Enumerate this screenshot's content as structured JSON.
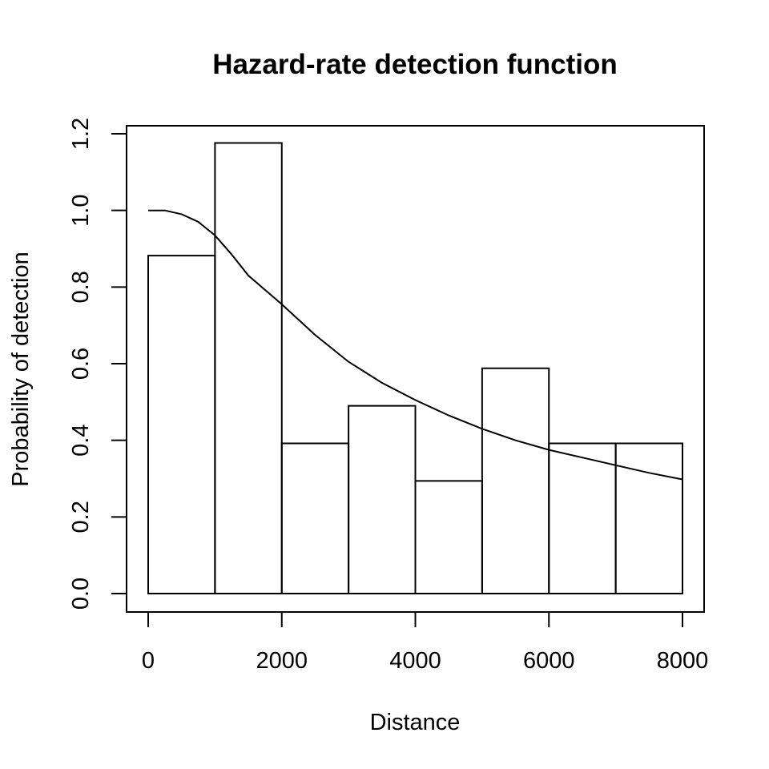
{
  "chart_data": {
    "type": "bar",
    "title": "Hazard-rate detection function",
    "xlabel": "Distance",
    "ylabel": "Probability of detection",
    "x_ticks": [
      "0",
      "2000",
      "4000",
      "6000",
      "8000"
    ],
    "y_ticks": [
      "0.0",
      "0.2",
      "0.4",
      "0.6",
      "0.8",
      "1.0",
      "1.2"
    ],
    "xlim": [
      0,
      8000
    ],
    "ylim": [
      0,
      1.2
    ],
    "bin_edges": [
      0,
      1000,
      2000,
      3000,
      4000,
      5000,
      6000,
      7000,
      8000
    ],
    "values": [
      0.882,
      1.176,
      0.392,
      0.49,
      0.294,
      0.588,
      0.392,
      0.392
    ],
    "curve": {
      "x": [
        0,
        250,
        500,
        750,
        1000,
        1250,
        1500,
        2000,
        2500,
        3000,
        3500,
        4000,
        4500,
        5000,
        5500,
        6000,
        6500,
        7000,
        7500,
        8000
      ],
      "y": [
        1.0,
        1.0,
        0.99,
        0.97,
        0.935,
        0.885,
        0.83,
        0.755,
        0.675,
        0.605,
        0.55,
        0.505,
        0.465,
        0.43,
        0.4,
        0.375,
        0.355,
        0.335,
        0.315,
        0.298
      ]
    },
    "grid": false,
    "legend": "none"
  }
}
